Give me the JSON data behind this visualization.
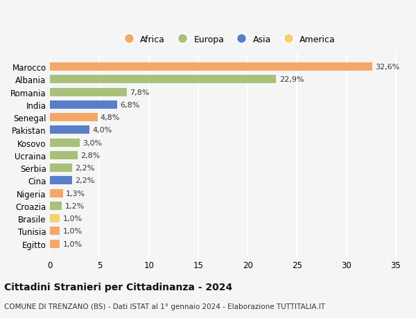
{
  "countries": [
    "Marocco",
    "Albania",
    "Romania",
    "India",
    "Senegal",
    "Pakistan",
    "Kosovo",
    "Ucraina",
    "Serbia",
    "Cina",
    "Nigeria",
    "Croazia",
    "Brasile",
    "Tunisia",
    "Egitto"
  ],
  "values": [
    32.6,
    22.9,
    7.8,
    6.8,
    4.8,
    4.0,
    3.0,
    2.8,
    2.2,
    2.2,
    1.3,
    1.2,
    1.0,
    1.0,
    1.0
  ],
  "labels": [
    "32,6%",
    "22,9%",
    "7,8%",
    "6,8%",
    "4,8%",
    "4,0%",
    "3,0%",
    "2,8%",
    "2,2%",
    "2,2%",
    "1,3%",
    "1,2%",
    "1,0%",
    "1,0%",
    "1,0%"
  ],
  "continents": [
    "Africa",
    "Europa",
    "Europa",
    "Asia",
    "Africa",
    "Asia",
    "Europa",
    "Europa",
    "Europa",
    "Asia",
    "Africa",
    "Europa",
    "America",
    "Africa",
    "Africa"
  ],
  "colors": {
    "Africa": "#F4A868",
    "Europa": "#A8C07A",
    "Asia": "#5B7EC9",
    "America": "#F5D06E"
  },
  "legend_order": [
    "Africa",
    "Europa",
    "Asia",
    "America"
  ],
  "title": "Cittadini Stranieri per Cittadinanza - 2024",
  "subtitle": "COMUNE DI TRENZANO (BS) - Dati ISTAT al 1° gennaio 2024 - Elaborazione TUTTITALIA.IT",
  "xlim": [
    0,
    36
  ],
  "xticks": [
    0,
    5,
    10,
    15,
    20,
    25,
    30,
    35
  ],
  "background_color": "#f5f5f5",
  "grid_color": "#ffffff",
  "bar_height": 0.65
}
